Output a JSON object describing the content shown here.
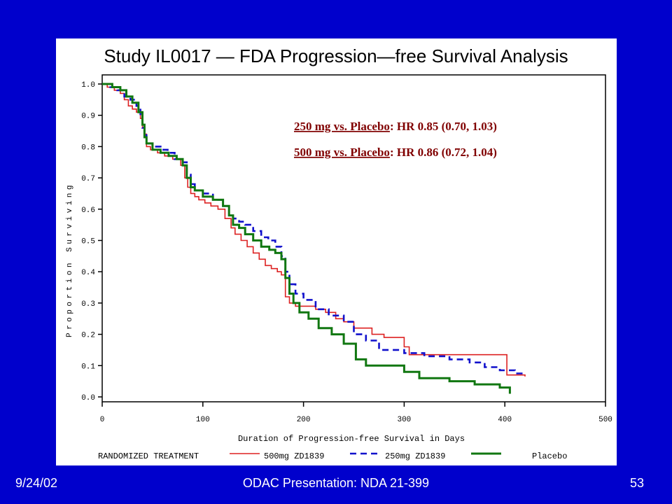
{
  "footer": {
    "date": "9/24/02",
    "center": "ODAC Presentation: NDA 21-399",
    "page": "53"
  },
  "chart_data": {
    "type": "line",
    "step": true,
    "title": "Study IL0017  —  FDA Progression—free Survival Analysis",
    "xlabel": "Duration of Progression-free Survival in Days",
    "ylabel": "Proportion Surviving",
    "xlim": [
      0,
      500
    ],
    "ylim": [
      0,
      1.0
    ],
    "xticks": [
      "0",
      "100",
      "200",
      "300",
      "400",
      "500"
    ],
    "yticks": [
      "0.0",
      "0.1",
      "0.2",
      "0.3",
      "0.4",
      "0.5",
      "0.6",
      "0.7",
      "0.8",
      "0.9",
      "1.0"
    ],
    "grid": false,
    "annotations": [
      {
        "label": "250 mg vs. Placebo",
        "stat": ": HR 0.85  (0.70, 1.03)"
      },
      {
        "label": "500 mg vs. Placebo",
        "stat": ": HR 0.86  (0.72, 1.04)"
      }
    ],
    "legend": {
      "title": "RANDOMIZED TREATMENT",
      "placement": "bottom",
      "entries": [
        "500mg ZD1839",
        "250mg ZD1839",
        "Placebo"
      ]
    },
    "series": [
      {
        "name": "500mg ZD1839",
        "color": "#dd2222",
        "style": "solid",
        "x": [
          0,
          5,
          12,
          18,
          22,
          26,
          30,
          34,
          38,
          40,
          42,
          44,
          48,
          55,
          62,
          70,
          78,
          82,
          85,
          88,
          92,
          96,
          102,
          108,
          115,
          122,
          128,
          132,
          138,
          144,
          150,
          156,
          162,
          168,
          174,
          178,
          182,
          186,
          192,
          200,
          212,
          222,
          232,
          240,
          250,
          268,
          280,
          300,
          305,
          400,
          402,
          420
        ],
        "y": [
          1.0,
          0.99,
          0.98,
          0.97,
          0.95,
          0.93,
          0.92,
          0.91,
          0.89,
          0.86,
          0.84,
          0.8,
          0.79,
          0.78,
          0.77,
          0.76,
          0.74,
          0.7,
          0.67,
          0.65,
          0.64,
          0.63,
          0.62,
          0.61,
          0.6,
          0.57,
          0.54,
          0.52,
          0.5,
          0.48,
          0.46,
          0.44,
          0.42,
          0.41,
          0.4,
          0.39,
          0.32,
          0.3,
          0.29,
          0.29,
          0.28,
          0.27,
          0.25,
          0.24,
          0.22,
          0.2,
          0.19,
          0.16,
          0.135,
          0.135,
          0.07,
          0.065
        ]
      },
      {
        "name": "250mg ZD1839",
        "color": "#1111cc",
        "style": "dashed",
        "x": [
          0,
          8,
          15,
          22,
          28,
          34,
          38,
          40,
          42,
          44,
          50,
          58,
          65,
          72,
          80,
          84,
          88,
          92,
          100,
          110,
          120,
          126,
          130,
          136,
          142,
          150,
          158,
          165,
          172,
          178,
          182,
          186,
          192,
          200,
          212,
          225,
          240,
          250,
          262,
          275,
          300,
          320,
          345,
          365,
          380,
          395,
          410,
          420
        ],
        "y": [
          1.0,
          0.99,
          0.98,
          0.96,
          0.95,
          0.93,
          0.9,
          0.86,
          0.84,
          0.81,
          0.8,
          0.79,
          0.78,
          0.76,
          0.75,
          0.71,
          0.68,
          0.66,
          0.65,
          0.63,
          0.61,
          0.58,
          0.57,
          0.56,
          0.55,
          0.53,
          0.51,
          0.5,
          0.48,
          0.45,
          0.4,
          0.36,
          0.33,
          0.31,
          0.28,
          0.26,
          0.24,
          0.2,
          0.18,
          0.15,
          0.14,
          0.13,
          0.12,
          0.11,
          0.095,
          0.085,
          0.075,
          0.07
        ]
      },
      {
        "name": "Placebo",
        "color": "#117711",
        "style": "solid-thick",
        "x": [
          0,
          10,
          18,
          24,
          30,
          36,
          40,
          42,
          44,
          50,
          58,
          66,
          74,
          80,
          84,
          88,
          92,
          100,
          110,
          120,
          126,
          130,
          136,
          142,
          150,
          158,
          166,
          172,
          178,
          182,
          186,
          190,
          196,
          205,
          215,
          228,
          240,
          252,
          262,
          280,
          300,
          315,
          345,
          370,
          395,
          405
        ],
        "y": [
          1.0,
          0.99,
          0.98,
          0.96,
          0.94,
          0.91,
          0.87,
          0.83,
          0.81,
          0.79,
          0.78,
          0.77,
          0.76,
          0.74,
          0.7,
          0.67,
          0.66,
          0.64,
          0.63,
          0.61,
          0.58,
          0.55,
          0.54,
          0.52,
          0.5,
          0.48,
          0.47,
          0.46,
          0.44,
          0.38,
          0.33,
          0.3,
          0.27,
          0.25,
          0.22,
          0.2,
          0.17,
          0.12,
          0.1,
          0.1,
          0.08,
          0.06,
          0.05,
          0.04,
          0.03,
          0.01
        ]
      }
    ]
  }
}
